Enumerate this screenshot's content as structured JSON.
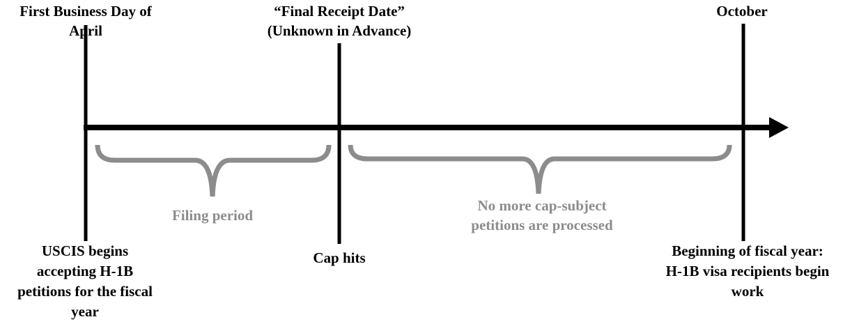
{
  "markers": [
    {
      "top": [
        "First Business Day of",
        "April"
      ],
      "bottom": [
        "USCIS begins",
        "accepting H-1B",
        "petitions for the fiscal",
        "year"
      ]
    },
    {
      "top": [
        "“Final Receipt Date”",
        "(Unknown in Advance)"
      ],
      "bottom": [
        "Cap hits"
      ]
    },
    {
      "top": [
        "October"
      ],
      "bottom": [
        "Beginning of fiscal year:",
        "H-1B visa recipients begin",
        "work"
      ]
    }
  ],
  "periods": [
    {
      "label": [
        "Filing period"
      ]
    },
    {
      "label": [
        "No more cap-subject",
        "petitions are processed"
      ]
    }
  ]
}
